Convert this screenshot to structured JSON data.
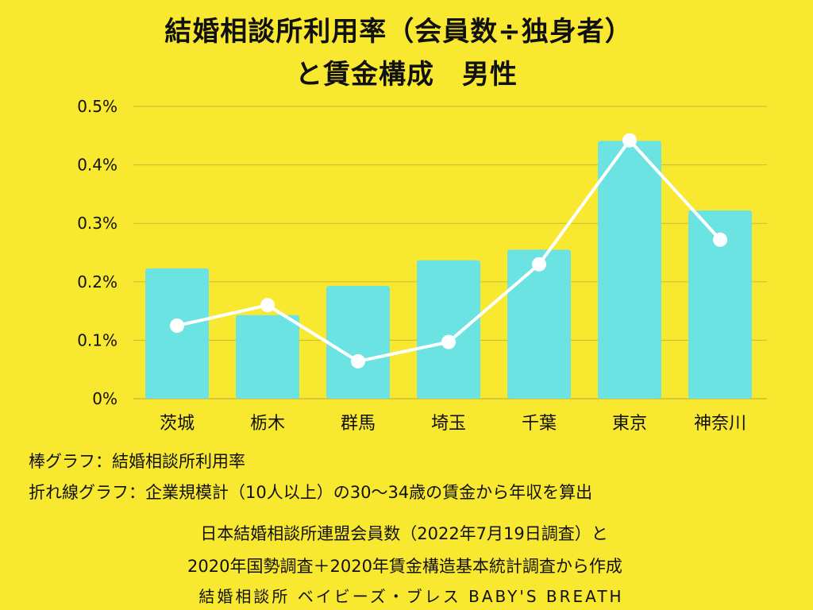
{
  "title_line1": "結婚相談所利用率（会員数÷独身者）",
  "title_line2": "と賃金構成　男性",
  "chart_data": {
    "type": "bar+line",
    "categories": [
      "茨城",
      "栃木",
      "群馬",
      "埼玉",
      "千葉",
      "東京",
      "神奈川"
    ],
    "bar_values": [
      0.223,
      0.143,
      0.193,
      0.237,
      0.255,
      0.441,
      0.322
    ],
    "line_values": [
      0.125,
      0.16,
      0.064,
      0.097,
      0.23,
      0.442,
      0.272
    ],
    "ylim": [
      0,
      0.5
    ],
    "yticks": [
      0,
      0.1,
      0.2,
      0.3,
      0.4,
      0.5
    ],
    "ytick_labels": [
      "0%",
      "0.1%",
      "0.2%",
      "0.3%",
      "0.4%",
      "0.5%"
    ],
    "grid": true,
    "bar_color": "#6ce3e3",
    "line_color": "#ffffff",
    "grid_color": "#c9b93a"
  },
  "notes": {
    "bar": "棒グラフ：結婚相談所利用率",
    "line": "折れ線グラフ：企業規模計（10人以上）の30～34歳の賃金から年収を算出"
  },
  "source": {
    "line1": "日本結婚相談所連盟会員数（2022年7月19日調査）と",
    "line2": "2020年国勢調査＋2020年賃金構造基本統計調査から作成"
  },
  "brand": "結婚相談所 ベイビーズ・ブレス BABY'S BREATH"
}
